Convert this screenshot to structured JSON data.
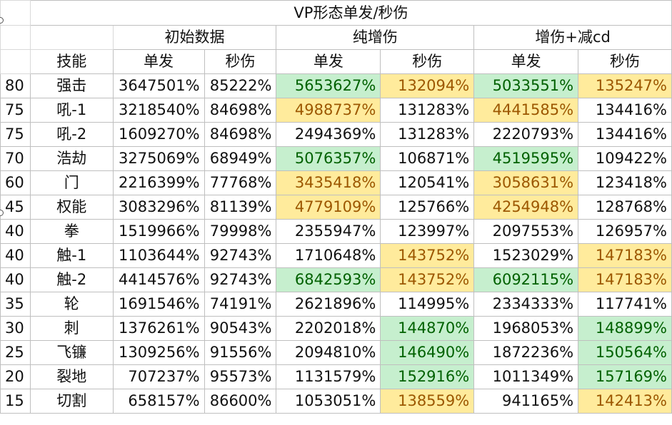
{
  "title": "VP形态单发/秒伤",
  "groups": {
    "initial": "初始数据",
    "pure": "纯增伤",
    "combo": "增伤+减cd"
  },
  "headers": {
    "skill": "技能",
    "single": "单发",
    "dps": "秒伤"
  },
  "colors": {
    "green_bg": "#c6efce",
    "green_text": "#006100",
    "yellow_bg": "#ffeb9c",
    "yellow_text": "#9c5700"
  },
  "rows": [
    {
      "level": "80",
      "skill": "强击",
      "c1": "3647501%",
      "c2": "85222%",
      "c3": "5653627%",
      "c4": "132094%",
      "c5": "5033551%",
      "c6": "135247%"
    },
    {
      "level": "75",
      "skill": "吼-1",
      "c1": "3218540%",
      "c2": "84698%",
      "c3": "4988737%",
      "c4": "131283%",
      "c5": "4441585%",
      "c6": "134416%"
    },
    {
      "level": "75",
      "skill": "吼-2",
      "c1": "1609270%",
      "c2": "84698%",
      "c3": "2494369%",
      "c4": "131283%",
      "c5": "2220793%",
      "c6": "134416%"
    },
    {
      "level": "70",
      "skill": "浩劫",
      "c1": "3275069%",
      "c2": "68949%",
      "c3": "5076357%",
      "c4": "106871%",
      "c5": "4519595%",
      "c6": "109422%"
    },
    {
      "level": "60",
      "skill": "门",
      "c1": "2216399%",
      "c2": "77768%",
      "c3": "3435418%",
      "c4": "120541%",
      "c5": "3058631%",
      "c6": "123418%"
    },
    {
      "level": "45",
      "skill": "权能",
      "c1": "3083296%",
      "c2": "81139%",
      "c3": "4779109%",
      "c4": "125766%",
      "c5": "4254948%",
      "c6": "128768%"
    },
    {
      "level": "40",
      "skill": "拳",
      "c1": "1519966%",
      "c2": "79998%",
      "c3": "2355947%",
      "c4": "123997%",
      "c5": "2097553%",
      "c6": "126957%"
    },
    {
      "level": "40",
      "skill": "触-1",
      "c1": "1103644%",
      "c2": "92743%",
      "c3": "1710648%",
      "c4": "143752%",
      "c5": "1523029%",
      "c6": "147183%"
    },
    {
      "level": "40",
      "skill": "触-2",
      "c1": "4414576%",
      "c2": "92743%",
      "c3": "6842593%",
      "c4": "143752%",
      "c5": "6092115%",
      "c6": "147183%"
    },
    {
      "level": "35",
      "skill": "轮",
      "c1": "1691546%",
      "c2": "74191%",
      "c3": "2621896%",
      "c4": "114995%",
      "c5": "2334333%",
      "c6": "117741%"
    },
    {
      "level": "30",
      "skill": "刺",
      "c1": "1376261%",
      "c2": "90543%",
      "c3": "2202018%",
      "c4": "144870%",
      "c5": "1968053%",
      "c6": "148899%"
    },
    {
      "level": "25",
      "skill": "飞镰",
      "c1": "1309256%",
      "c2": "91556%",
      "c3": "2094810%",
      "c4": "146490%",
      "c5": "1872236%",
      "c6": "150564%"
    },
    {
      "level": "20",
      "skill": "裂地",
      "c1": "707237%",
      "c2": "95573%",
      "c3": "1131579%",
      "c4": "152916%",
      "c5": "1011349%",
      "c6": "157169%"
    },
    {
      "level": "15",
      "skill": "切割",
      "c1": "658157%",
      "c2": "86600%",
      "c3": "1053051%",
      "c4": "138559%",
      "c5": "941165%",
      "c6": "142413%"
    }
  ]
}
